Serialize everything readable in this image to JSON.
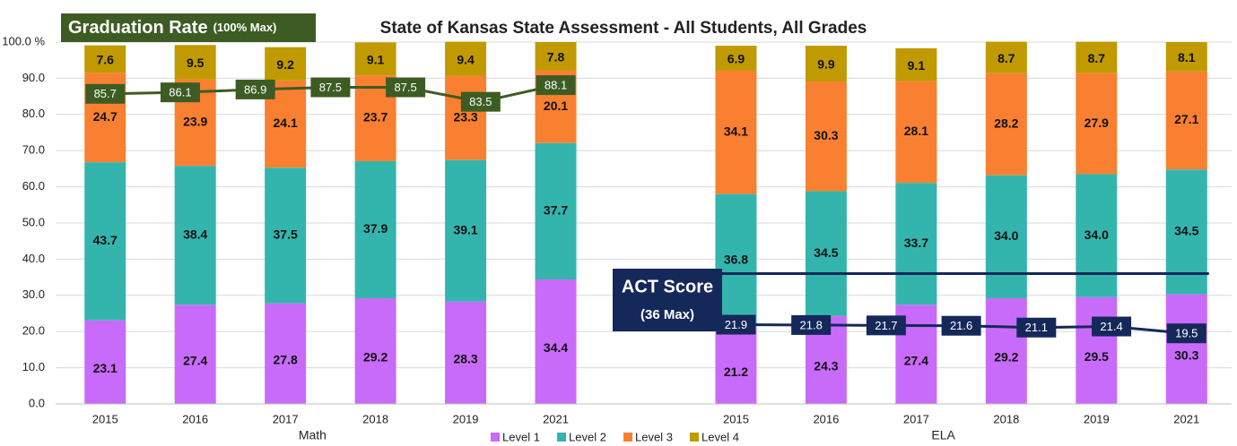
{
  "chart_data": {
    "type": "bar",
    "stacked": true,
    "title": "State of Kansas State Assessment - All Students, All Grades",
    "categories": [
      "2015",
      "2016",
      "2017",
      "2018",
      "2019",
      "2021",
      null,
      "2015",
      "2016",
      "2017",
      "2018",
      "2019",
      "2021"
    ],
    "groups": [
      "Math",
      "ELA"
    ],
    "series": [
      {
        "name": "Level 1",
        "color": "#c86bfa",
        "values": [
          23.1,
          27.4,
          27.8,
          29.2,
          28.3,
          34.4,
          null,
          21.2,
          24.3,
          27.4,
          29.2,
          29.5,
          30.3
        ]
      },
      {
        "name": "Level 2",
        "color": "#33b5ae",
        "values": [
          43.7,
          38.4,
          37.5,
          37.9,
          39.1,
          37.7,
          null,
          36.8,
          34.5,
          33.7,
          34.0,
          34.0,
          34.5
        ],
        "value_labels": [
          "43.7",
          "38.4",
          "37.5",
          "37.9",
          "39.1",
          "37.7",
          null,
          "36.8",
          "34.5",
          "33.7",
          "34.0",
          "34.0",
          "34.5"
        ]
      },
      {
        "name": "Level 3",
        "color": "#f98031",
        "values": [
          24.7,
          23.9,
          24.1,
          23.7,
          23.3,
          20.1,
          null,
          34.1,
          30.3,
          28.1,
          28.2,
          27.9,
          27.1
        ]
      },
      {
        "name": "Level 4",
        "color": "#c09a00",
        "values": [
          7.6,
          9.5,
          9.2,
          9.1,
          9.4,
          7.8,
          null,
          6.9,
          9.9,
          9.1,
          8.7,
          8.7,
          8.1
        ]
      }
    ],
    "lines": [
      {
        "title": "Graduation Rate",
        "subtitle": "(100% Max)",
        "color": "#3d5c23",
        "group": 0,
        "values": [
          85.7,
          86.1,
          86.9,
          87.5,
          87.5,
          83.5,
          88.1
        ]
      },
      {
        "title": "ACT Score",
        "subtitle": "(36 Max)",
        "color": "#15285a",
        "group": 1,
        "max": 36,
        "values": [
          21.9,
          21.8,
          21.7,
          21.6,
          21.1,
          21.4,
          19.5
        ]
      }
    ],
    "ylim": [
      0,
      100
    ],
    "yticks": [
      {
        "value": 0,
        "label": "0.0"
      },
      {
        "value": 10,
        "label": "10.0"
      },
      {
        "value": 20,
        "label": "20.0"
      },
      {
        "value": 30,
        "label": "30.0"
      },
      {
        "value": 40,
        "label": "40.0"
      },
      {
        "value": 50,
        "label": "50.0"
      },
      {
        "value": 60,
        "label": "60.0"
      },
      {
        "value": 70,
        "label": "70.0"
      },
      {
        "value": 80,
        "label": "80.0"
      },
      {
        "value": 90,
        "label": "90.0"
      },
      {
        "value": 100,
        "label": "100.0 %"
      }
    ],
    "grid": true,
    "legend": "bottom"
  }
}
